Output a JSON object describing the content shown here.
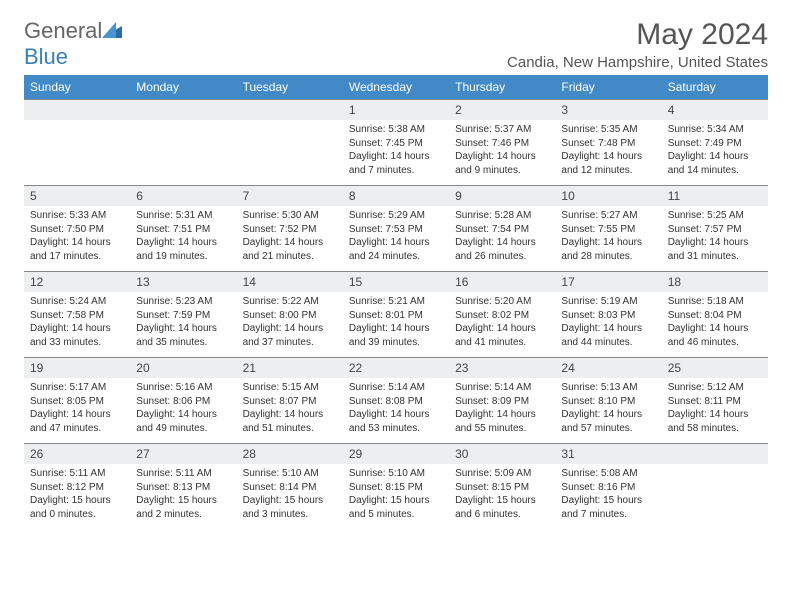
{
  "brand": {
    "name_a": "General",
    "name_b": "Blue",
    "icon_color": "#2b6aa8"
  },
  "header": {
    "month": "May 2024",
    "location": "Candia, New Hampshire, United States"
  },
  "style": {
    "header_bg": "#4189c7",
    "header_text": "#ffffff",
    "daynum_bg": "#eceeef",
    "fontsize_day": 12,
    "fontsize_content": 10,
    "border_color": "#888"
  },
  "weekdays": [
    "Sunday",
    "Monday",
    "Tuesday",
    "Wednesday",
    "Thursday",
    "Friday",
    "Saturday"
  ],
  "weeks": [
    [
      {
        "n": "",
        "lines": [
          "",
          "",
          "",
          ""
        ]
      },
      {
        "n": "",
        "lines": [
          "",
          "",
          "",
          ""
        ]
      },
      {
        "n": "",
        "lines": [
          "",
          "",
          "",
          ""
        ]
      },
      {
        "n": "1",
        "lines": [
          "Sunrise: 5:38 AM",
          "Sunset: 7:45 PM",
          "Daylight: 14 hours",
          "and 7 minutes."
        ]
      },
      {
        "n": "2",
        "lines": [
          "Sunrise: 5:37 AM",
          "Sunset: 7:46 PM",
          "Daylight: 14 hours",
          "and 9 minutes."
        ]
      },
      {
        "n": "3",
        "lines": [
          "Sunrise: 5:35 AM",
          "Sunset: 7:48 PM",
          "Daylight: 14 hours",
          "and 12 minutes."
        ]
      },
      {
        "n": "4",
        "lines": [
          "Sunrise: 5:34 AM",
          "Sunset: 7:49 PM",
          "Daylight: 14 hours",
          "and 14 minutes."
        ]
      }
    ],
    [
      {
        "n": "5",
        "lines": [
          "Sunrise: 5:33 AM",
          "Sunset: 7:50 PM",
          "Daylight: 14 hours",
          "and 17 minutes."
        ]
      },
      {
        "n": "6",
        "lines": [
          "Sunrise: 5:31 AM",
          "Sunset: 7:51 PM",
          "Daylight: 14 hours",
          "and 19 minutes."
        ]
      },
      {
        "n": "7",
        "lines": [
          "Sunrise: 5:30 AM",
          "Sunset: 7:52 PM",
          "Daylight: 14 hours",
          "and 21 minutes."
        ]
      },
      {
        "n": "8",
        "lines": [
          "Sunrise: 5:29 AM",
          "Sunset: 7:53 PM",
          "Daylight: 14 hours",
          "and 24 minutes."
        ]
      },
      {
        "n": "9",
        "lines": [
          "Sunrise: 5:28 AM",
          "Sunset: 7:54 PM",
          "Daylight: 14 hours",
          "and 26 minutes."
        ]
      },
      {
        "n": "10",
        "lines": [
          "Sunrise: 5:27 AM",
          "Sunset: 7:55 PM",
          "Daylight: 14 hours",
          "and 28 minutes."
        ]
      },
      {
        "n": "11",
        "lines": [
          "Sunrise: 5:25 AM",
          "Sunset: 7:57 PM",
          "Daylight: 14 hours",
          "and 31 minutes."
        ]
      }
    ],
    [
      {
        "n": "12",
        "lines": [
          "Sunrise: 5:24 AM",
          "Sunset: 7:58 PM",
          "Daylight: 14 hours",
          "and 33 minutes."
        ]
      },
      {
        "n": "13",
        "lines": [
          "Sunrise: 5:23 AM",
          "Sunset: 7:59 PM",
          "Daylight: 14 hours",
          "and 35 minutes."
        ]
      },
      {
        "n": "14",
        "lines": [
          "Sunrise: 5:22 AM",
          "Sunset: 8:00 PM",
          "Daylight: 14 hours",
          "and 37 minutes."
        ]
      },
      {
        "n": "15",
        "lines": [
          "Sunrise: 5:21 AM",
          "Sunset: 8:01 PM",
          "Daylight: 14 hours",
          "and 39 minutes."
        ]
      },
      {
        "n": "16",
        "lines": [
          "Sunrise: 5:20 AM",
          "Sunset: 8:02 PM",
          "Daylight: 14 hours",
          "and 41 minutes."
        ]
      },
      {
        "n": "17",
        "lines": [
          "Sunrise: 5:19 AM",
          "Sunset: 8:03 PM",
          "Daylight: 14 hours",
          "and 44 minutes."
        ]
      },
      {
        "n": "18",
        "lines": [
          "Sunrise: 5:18 AM",
          "Sunset: 8:04 PM",
          "Daylight: 14 hours",
          "and 46 minutes."
        ]
      }
    ],
    [
      {
        "n": "19",
        "lines": [
          "Sunrise: 5:17 AM",
          "Sunset: 8:05 PM",
          "Daylight: 14 hours",
          "and 47 minutes."
        ]
      },
      {
        "n": "20",
        "lines": [
          "Sunrise: 5:16 AM",
          "Sunset: 8:06 PM",
          "Daylight: 14 hours",
          "and 49 minutes."
        ]
      },
      {
        "n": "21",
        "lines": [
          "Sunrise: 5:15 AM",
          "Sunset: 8:07 PM",
          "Daylight: 14 hours",
          "and 51 minutes."
        ]
      },
      {
        "n": "22",
        "lines": [
          "Sunrise: 5:14 AM",
          "Sunset: 8:08 PM",
          "Daylight: 14 hours",
          "and 53 minutes."
        ]
      },
      {
        "n": "23",
        "lines": [
          "Sunrise: 5:14 AM",
          "Sunset: 8:09 PM",
          "Daylight: 14 hours",
          "and 55 minutes."
        ]
      },
      {
        "n": "24",
        "lines": [
          "Sunrise: 5:13 AM",
          "Sunset: 8:10 PM",
          "Daylight: 14 hours",
          "and 57 minutes."
        ]
      },
      {
        "n": "25",
        "lines": [
          "Sunrise: 5:12 AM",
          "Sunset: 8:11 PM",
          "Daylight: 14 hours",
          "and 58 minutes."
        ]
      }
    ],
    [
      {
        "n": "26",
        "lines": [
          "Sunrise: 5:11 AM",
          "Sunset: 8:12 PM",
          "Daylight: 15 hours",
          "and 0 minutes."
        ]
      },
      {
        "n": "27",
        "lines": [
          "Sunrise: 5:11 AM",
          "Sunset: 8:13 PM",
          "Daylight: 15 hours",
          "and 2 minutes."
        ]
      },
      {
        "n": "28",
        "lines": [
          "Sunrise: 5:10 AM",
          "Sunset: 8:14 PM",
          "Daylight: 15 hours",
          "and 3 minutes."
        ]
      },
      {
        "n": "29",
        "lines": [
          "Sunrise: 5:10 AM",
          "Sunset: 8:15 PM",
          "Daylight: 15 hours",
          "and 5 minutes."
        ]
      },
      {
        "n": "30",
        "lines": [
          "Sunrise: 5:09 AM",
          "Sunset: 8:15 PM",
          "Daylight: 15 hours",
          "and 6 minutes."
        ]
      },
      {
        "n": "31",
        "lines": [
          "Sunrise: 5:08 AM",
          "Sunset: 8:16 PM",
          "Daylight: 15 hours",
          "and 7 minutes."
        ]
      },
      {
        "n": "",
        "lines": [
          "",
          "",
          "",
          ""
        ]
      }
    ]
  ]
}
